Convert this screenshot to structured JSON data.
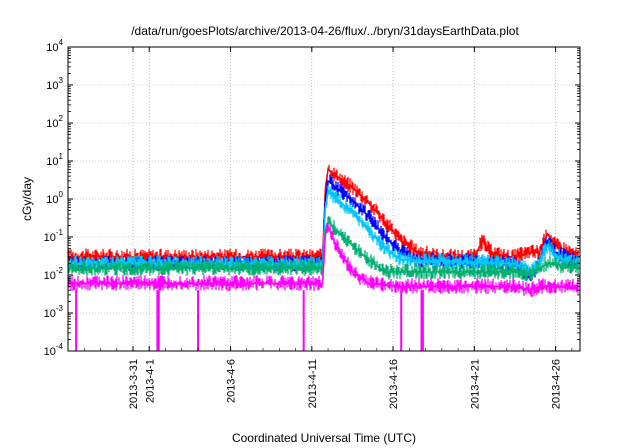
{
  "chart_data": {
    "type": "line",
    "title": "/data/run/goesPlots/archive/2013-04-26/flux/../bryn/31daysEarthData.plot",
    "xlabel": "Coordinated Universal Time (UTC)",
    "ylabel": "cGy/day",
    "yscale": "log",
    "ylim": [
      0.0001,
      10000
    ],
    "xlim": [
      "2013-03-27T00:00",
      "2013-04-27T12:00"
    ],
    "grid": true,
    "y_ticks": [
      {
        "value": 0.0001,
        "base": "10",
        "exp": "-4"
      },
      {
        "value": 0.001,
        "base": "10",
        "exp": "-3"
      },
      {
        "value": 0.01,
        "base": "10",
        "exp": "-2"
      },
      {
        "value": 0.1,
        "base": "10",
        "exp": "-1"
      },
      {
        "value": 1,
        "base": "10",
        "exp": "0"
      },
      {
        "value": 10,
        "base": "10",
        "exp": "1"
      },
      {
        "value": 100,
        "base": "10",
        "exp": "2"
      },
      {
        "value": 1000,
        "base": "10",
        "exp": "3"
      },
      {
        "value": 10000,
        "base": "10",
        "exp": "4"
      }
    ],
    "x_ticks": [
      {
        "date": "2013-03-31",
        "label": "2013-3-31"
      },
      {
        "date": "2013-04-01",
        "label": "2013-4-1"
      },
      {
        "date": "2013-04-06",
        "label": "2013-4-6"
      },
      {
        "date": "2013-04-11",
        "label": "2013-4-11"
      },
      {
        "date": "2013-04-16",
        "label": "2013-4-16"
      },
      {
        "date": "2013-04-21",
        "label": "2013-4-21"
      },
      {
        "date": "2013-04-26",
        "label": "2013-4-26"
      }
    ],
    "series": [
      {
        "color": "#ff0000",
        "points": [
          [
            "2013-03-27T00:00",
            0.03
          ],
          [
            "2013-04-01T00:00",
            0.03
          ],
          [
            "2013-04-06T00:00",
            0.03
          ],
          [
            "2013-04-11T00:00",
            0.03
          ],
          [
            "2013-04-11T16:00",
            0.03
          ],
          [
            "2013-04-11T20:00",
            2.0
          ],
          [
            "2013-04-12T00:00",
            6.0
          ],
          [
            "2013-04-12T12:00",
            4.0
          ],
          [
            "2013-04-13T12:00",
            2.0
          ],
          [
            "2013-04-14T12:00",
            0.8
          ],
          [
            "2013-04-15T12:00",
            0.25
          ],
          [
            "2013-04-16T12:00",
            0.08
          ],
          [
            "2013-04-17T12:00",
            0.04
          ],
          [
            "2013-04-19T00:00",
            0.03
          ],
          [
            "2013-04-21T00:00",
            0.03
          ],
          [
            "2013-04-21T12:00",
            0.08
          ],
          [
            "2013-04-22T00:00",
            0.04
          ],
          [
            "2013-04-23T00:00",
            0.03
          ],
          [
            "2013-04-23T12:00",
            0.03
          ],
          [
            "2013-04-24T12:00",
            0.04
          ],
          [
            "2013-04-25T00:00",
            0.04
          ],
          [
            "2013-04-25T12:00",
            0.12
          ],
          [
            "2013-04-26T00:00",
            0.06
          ],
          [
            "2013-04-27T12:00",
            0.03
          ]
        ]
      },
      {
        "color": "#0000ff",
        "points": [
          [
            "2013-03-27T00:00",
            0.02
          ],
          [
            "2013-04-11T16:00",
            0.02
          ],
          [
            "2013-04-11T20:00",
            1.0
          ],
          [
            "2013-04-12T00:00",
            3.0
          ],
          [
            "2013-04-12T12:00",
            2.0
          ],
          [
            "2013-04-13T12:00",
            0.9
          ],
          [
            "2013-04-14T12:00",
            0.35
          ],
          [
            "2013-04-15T12:00",
            0.1
          ],
          [
            "2013-04-16T12:00",
            0.04
          ],
          [
            "2013-04-17T12:00",
            0.025
          ],
          [
            "2013-04-23T12:00",
            0.02
          ],
          [
            "2013-04-24T12:00",
            0.008
          ],
          [
            "2013-04-25T00:00",
            0.025
          ],
          [
            "2013-04-25T12:00",
            0.08
          ],
          [
            "2013-04-26T00:00",
            0.04
          ],
          [
            "2013-04-27T12:00",
            0.02
          ]
        ]
      },
      {
        "color": "#00c8ff",
        "points": [
          [
            "2013-03-27T00:00",
            0.02
          ],
          [
            "2013-04-11T16:00",
            0.02
          ],
          [
            "2013-04-11T20:00",
            0.6
          ],
          [
            "2013-04-12T00:00",
            1.5
          ],
          [
            "2013-04-12T12:00",
            1.0
          ],
          [
            "2013-04-13T12:00",
            0.45
          ],
          [
            "2013-04-14T12:00",
            0.15
          ],
          [
            "2013-04-15T12:00",
            0.05
          ],
          [
            "2013-04-16T12:00",
            0.025
          ],
          [
            "2013-04-23T12:00",
            0.02
          ],
          [
            "2013-04-24T12:00",
            0.012
          ],
          [
            "2013-04-25T00:00",
            0.02
          ],
          [
            "2013-04-25T12:00",
            0.06
          ],
          [
            "2013-04-26T00:00",
            0.03
          ],
          [
            "2013-04-27T12:00",
            0.02
          ]
        ]
      },
      {
        "color": "#00b070",
        "points": [
          [
            "2013-03-27T00:00",
            0.015
          ],
          [
            "2013-04-11T16:00",
            0.015
          ],
          [
            "2013-04-11T20:00",
            0.15
          ],
          [
            "2013-04-12T00:00",
            0.25
          ],
          [
            "2013-04-12T12:00",
            0.15
          ],
          [
            "2013-04-13T12:00",
            0.06
          ],
          [
            "2013-04-14T12:00",
            0.025
          ],
          [
            "2013-04-15T12:00",
            0.012
          ],
          [
            "2013-04-16T12:00",
            0.012
          ],
          [
            "2013-04-23T12:00",
            0.012
          ],
          [
            "2013-04-24T12:00",
            0.01
          ],
          [
            "2013-04-25T00:00",
            0.015
          ],
          [
            "2013-04-25T12:00",
            0.02
          ],
          [
            "2013-04-27T12:00",
            0.015
          ]
        ]
      },
      {
        "color": "#ff00ff",
        "points": [
          [
            "2013-03-27T00:00",
            0.006
          ],
          [
            "2013-04-11T16:00",
            0.006
          ],
          [
            "2013-04-11T20:00",
            0.12
          ],
          [
            "2013-04-12T00:00",
            0.18
          ],
          [
            "2013-04-12T12:00",
            0.06
          ],
          [
            "2013-04-13T12:00",
            0.012
          ],
          [
            "2013-04-14T12:00",
            0.006
          ],
          [
            "2013-04-16T12:00",
            0.005
          ],
          [
            "2013-04-23T12:00",
            0.005
          ],
          [
            "2013-04-24T12:00",
            0.004
          ],
          [
            "2013-04-25T00:00",
            0.005
          ],
          [
            "2013-04-27T12:00",
            0.005
          ]
        ]
      }
    ],
    "dropouts": [
      {
        "time": "2013-03-27T12:00",
        "value": 0.0001
      },
      {
        "time": "2013-04-01T12:00",
        "value": 0.0001
      },
      {
        "time": "2013-04-01T14:00",
        "value": 0.0001
      },
      {
        "time": "2013-04-04T00:00",
        "value": 0.0001
      },
      {
        "time": "2013-04-10T12:00",
        "value": 0.0001
      },
      {
        "time": "2013-04-16T12:00",
        "value": 0.0001
      },
      {
        "time": "2013-04-17T18:00",
        "value": 0.0001
      },
      {
        "time": "2013-04-17T20:00",
        "value": 0.0001
      }
    ]
  }
}
